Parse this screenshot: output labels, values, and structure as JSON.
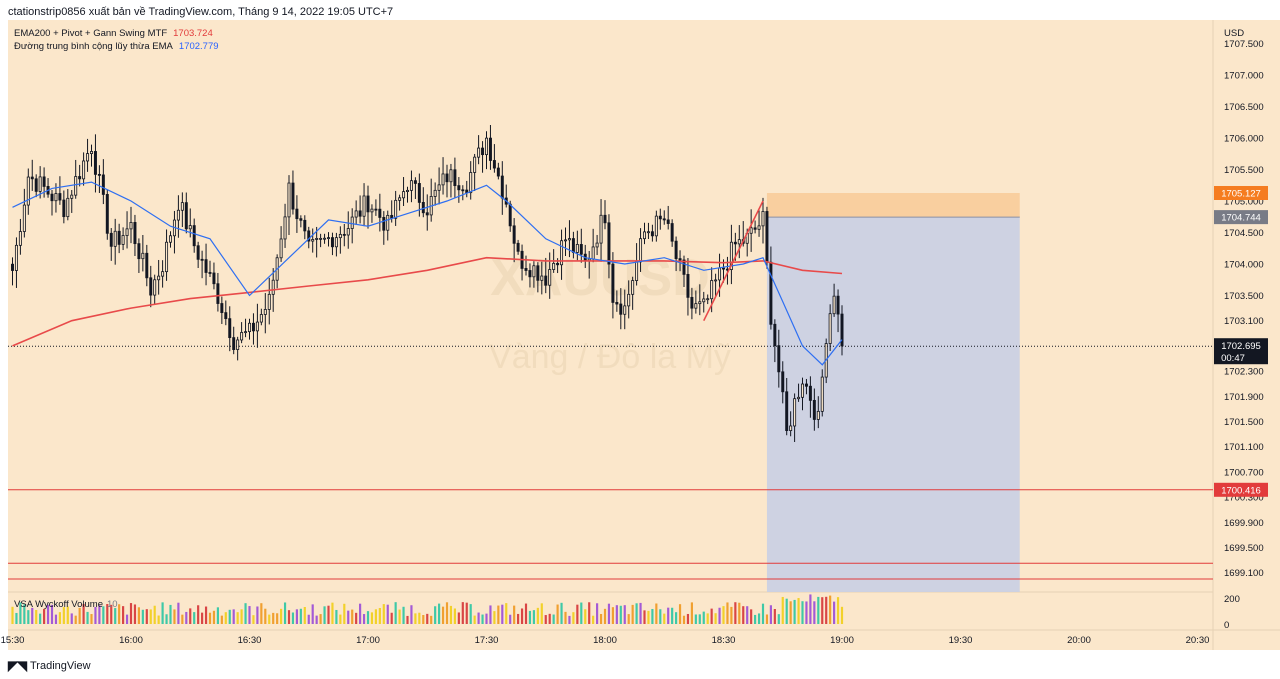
{
  "header": {
    "publish_info": "ctationstrip0856 xuất bản về TradingView.com, Tháng 9 14, 2022 19:05 UTC+7"
  },
  "legend": {
    "ind1_label": "EMA200 + Pivot + Gann Swing MTF",
    "ind1_value": "1703.724",
    "ind2_label": "Đường trung bình cộng lũy thừa EMA",
    "ind2_value": "1702.779"
  },
  "watermark": {
    "symbol": "XAUUSD",
    "name": "Vàng / Đô la Mỹ"
  },
  "volume": {
    "label": "VSA Wyckoff Volume",
    "length": "10"
  },
  "footer": {
    "brand": "TradingView"
  },
  "colors": {
    "background": "#fbe7cb",
    "ema200": "#e84a4a",
    "ema": "#2e6ff2",
    "sr_line": "#e23b3b",
    "target_zone": "#f8cc9a",
    "stop_zone": "#c9cfe4",
    "price_tag": "#131722"
  },
  "chart_data": {
    "type": "candlestick",
    "symbol": "XAUUSD",
    "y_currency": "USD",
    "ylim": [
      1698.9,
      1707.6
    ],
    "y_ticks": [
      "1707.500",
      "1707.000",
      "1706.500",
      "1706.000",
      "1705.500",
      "1705.000",
      "1704.500",
      "1704.000",
      "1703.500",
      "1703.100",
      "1702.300",
      "1701.900",
      "1701.500",
      "1701.100",
      "1700.700",
      "1700.300",
      "1699.900",
      "1699.500",
      "1699.100"
    ],
    "x_ticks": [
      "15:30",
      "16:00",
      "16:30",
      "17:00",
      "17:30",
      "18:00",
      "18:30",
      "19:00",
      "19:30",
      "20:00",
      "20:30"
    ],
    "current_price": "1702.695",
    "countdown": "00:47",
    "price_tags": [
      {
        "value": "1705.127",
        "color": "#f57c20"
      },
      {
        "value": "1704.744",
        "color": "#787b86"
      },
      {
        "value": "1700.416",
        "color": "#e23b3b"
      }
    ],
    "horizontal_lines": [
      1700.416,
      1699.25,
      1699.0
    ],
    "position_tool": {
      "target_top": 1705.127,
      "entry": 1704.744,
      "stop": 1698.9,
      "from": "18:41",
      "to": "19:45"
    },
    "anchors": [
      [
        "15:30",
        1703.9
      ],
      [
        "15:34",
        1705.4
      ],
      [
        "15:38",
        1705.2
      ],
      [
        "15:43",
        1704.9
      ],
      [
        "15:50",
        1705.9
      ],
      [
        "15:55",
        1704.3
      ],
      [
        "16:00",
        1704.6
      ],
      [
        "16:05",
        1703.6
      ],
      [
        "16:08",
        1704.0
      ],
      [
        "16:12",
        1705.0
      ],
      [
        "16:16",
        1704.3
      ],
      [
        "16:22",
        1703.5
      ],
      [
        "16:26",
        1702.8
      ],
      [
        "16:30",
        1702.9
      ],
      [
        "16:35",
        1703.4
      ],
      [
        "16:40",
        1705.2
      ],
      [
        "16:45",
        1704.2
      ],
      [
        "16:50",
        1704.4
      ],
      [
        "16:55",
        1704.6
      ],
      [
        "17:00",
        1705.0
      ],
      [
        "17:05",
        1704.6
      ],
      [
        "17:10",
        1705.3
      ],
      [
        "17:15",
        1704.9
      ],
      [
        "17:20",
        1705.4
      ],
      [
        "17:25",
        1705.3
      ],
      [
        "17:30",
        1706.0
      ],
      [
        "17:35",
        1705.0
      ],
      [
        "17:38",
        1704.1
      ],
      [
        "17:45",
        1703.8
      ],
      [
        "17:50",
        1704.4
      ],
      [
        "17:55",
        1704.0
      ],
      [
        "18:00",
        1704.8
      ],
      [
        "18:02",
        1703.5
      ],
      [
        "18:05",
        1703.3
      ],
      [
        "18:10",
        1704.5
      ],
      [
        "18:15",
        1704.7
      ],
      [
        "18:18",
        1704.1
      ],
      [
        "18:22",
        1703.3
      ],
      [
        "18:25",
        1703.3
      ],
      [
        "18:28",
        1703.7
      ],
      [
        "18:33",
        1704.3
      ],
      [
        "18:36",
        1704.4
      ],
      [
        "18:40",
        1704.7
      ],
      [
        "18:42",
        1703.2
      ],
      [
        "18:44",
        1702.3
      ],
      [
        "18:46",
        1701.3
      ],
      [
        "18:48",
        1701.8
      ],
      [
        "18:50",
        1702.2
      ],
      [
        "18:52",
        1701.9
      ],
      [
        "18:54",
        1701.5
      ],
      [
        "18:56",
        1702.9
      ],
      [
        "18:58",
        1703.6
      ],
      [
        "19:00",
        1702.7
      ]
    ],
    "series": [
      {
        "name": "EMA200",
        "color": "#e84a4a",
        "points": [
          [
            "15:30",
            1702.7
          ],
          [
            "15:45",
            1703.1
          ],
          [
            "16:00",
            1703.3
          ],
          [
            "16:15",
            1703.45
          ],
          [
            "16:30",
            1703.55
          ],
          [
            "16:45",
            1703.65
          ],
          [
            "17:00",
            1703.75
          ],
          [
            "17:15",
            1703.9
          ],
          [
            "17:30",
            1704.1
          ],
          [
            "17:45",
            1704.05
          ],
          [
            "18:00",
            1704.05
          ],
          [
            "18:15",
            1704.05
          ],
          [
            "18:30",
            1704.02
          ],
          [
            "18:40",
            1704.05
          ],
          [
            "18:50",
            1703.9
          ],
          [
            "19:00",
            1703.85
          ]
        ]
      },
      {
        "name": "EMA",
        "color": "#2e6ff2",
        "points": [
          [
            "15:30",
            1704.9
          ],
          [
            "15:40",
            1705.2
          ],
          [
            "15:50",
            1705.3
          ],
          [
            "16:00",
            1705.0
          ],
          [
            "16:10",
            1704.6
          ],
          [
            "16:20",
            1704.4
          ],
          [
            "16:30",
            1703.5
          ],
          [
            "16:40",
            1704.1
          ],
          [
            "16:50",
            1704.7
          ],
          [
            "17:00",
            1704.6
          ],
          [
            "17:10",
            1704.8
          ],
          [
            "17:20",
            1705.0
          ],
          [
            "17:30",
            1705.25
          ],
          [
            "17:35",
            1705.0
          ],
          [
            "17:45",
            1704.4
          ],
          [
            "17:55",
            1704.1
          ],
          [
            "18:05",
            1704.0
          ],
          [
            "18:15",
            1704.1
          ],
          [
            "18:25",
            1703.9
          ],
          [
            "18:35",
            1704.0
          ],
          [
            "18:40",
            1704.1
          ],
          [
            "18:45",
            1703.4
          ],
          [
            "18:50",
            1702.7
          ],
          [
            "18:55",
            1702.4
          ],
          [
            "19:00",
            1702.8
          ]
        ]
      }
    ],
    "volume_axis": [
      "200",
      "0"
    ],
    "volume_colors": [
      "#3ec9a7",
      "#f0a030",
      "#d94545",
      "#a35ad6",
      "#f2d12a"
    ]
  }
}
